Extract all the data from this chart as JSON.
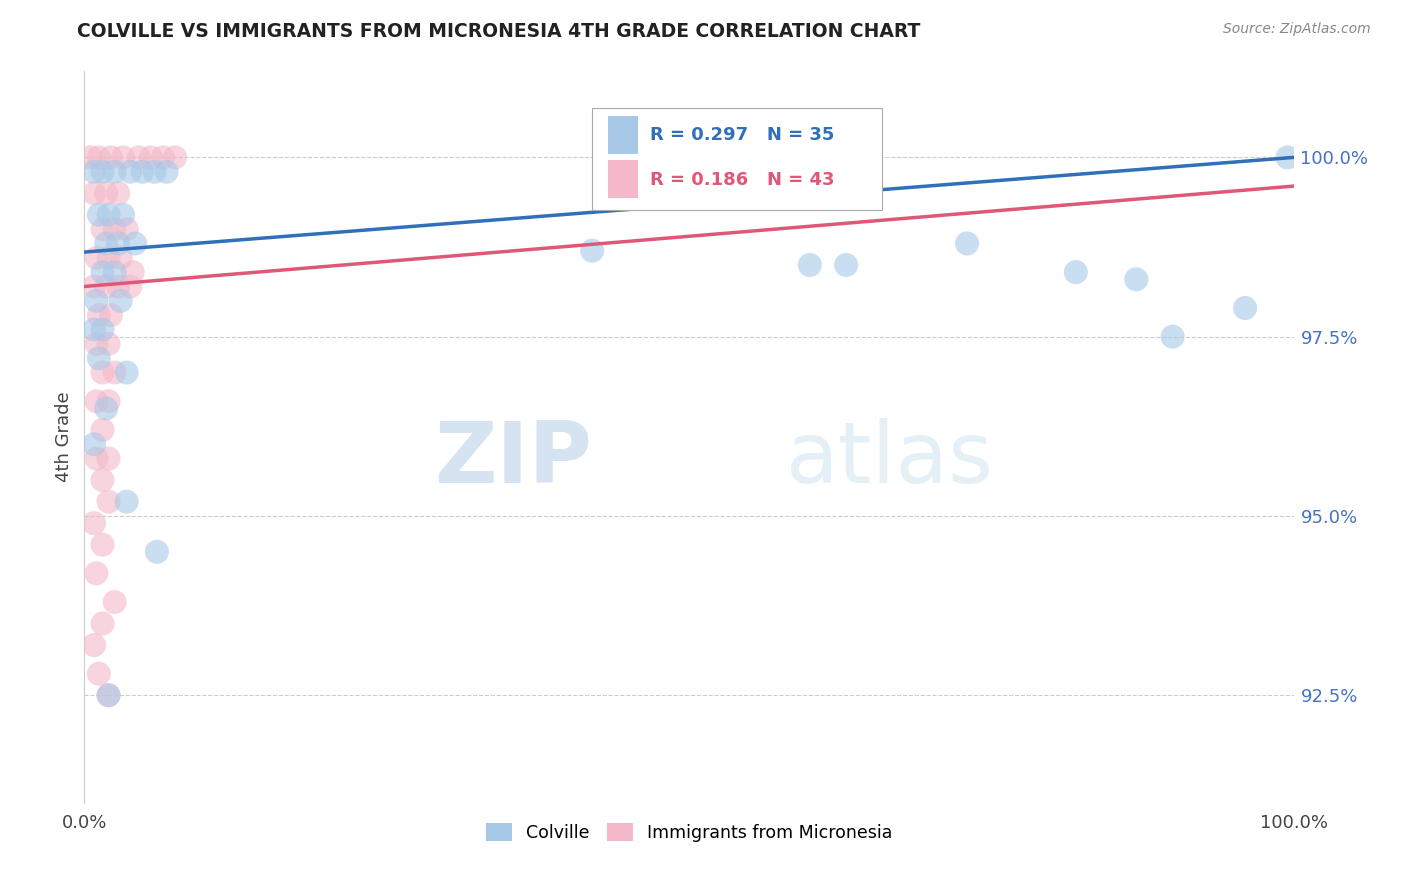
{
  "title": "COLVILLE VS IMMIGRANTS FROM MICRONESIA 4TH GRADE CORRELATION CHART",
  "source_text": "Source: ZipAtlas.com",
  "ylabel": "4th Grade",
  "x_min": 0.0,
  "x_max": 100.0,
  "y_min": 91.0,
  "y_max": 101.2,
  "y_ticks": [
    92.5,
    95.0,
    97.5,
    100.0
  ],
  "x_tick_positions": [
    0.0,
    100.0
  ],
  "x_tick_labels": [
    "0.0%",
    "100.0%"
  ],
  "blue_color": "#a8c8e8",
  "pink_color": "#f4b8c8",
  "blue_line_color": "#3070b8",
  "pink_line_color": "#e05878",
  "R_blue": 0.297,
  "N_blue": 35,
  "R_pink": 0.186,
  "N_pink": 43,
  "colville_label": "Colville",
  "micronesia_label": "Immigrants from Micronesia",
  "watermark_zip": "ZIP",
  "watermark_atlas": "atlas",
  "right_tick_color": "#4472c4",
  "background_color": "#ffffff",
  "blue_points": [
    [
      0.8,
      99.8
    ],
    [
      1.5,
      99.8
    ],
    [
      2.5,
      99.8
    ],
    [
      3.8,
      99.8
    ],
    [
      4.8,
      99.8
    ],
    [
      5.8,
      99.8
    ],
    [
      6.8,
      99.8
    ],
    [
      1.2,
      99.2
    ],
    [
      2.0,
      99.2
    ],
    [
      3.2,
      99.2
    ],
    [
      1.8,
      98.8
    ],
    [
      2.8,
      98.8
    ],
    [
      4.2,
      98.8
    ],
    [
      1.5,
      98.4
    ],
    [
      2.5,
      98.4
    ],
    [
      1.0,
      98.0
    ],
    [
      3.0,
      98.0
    ],
    [
      1.5,
      97.6
    ],
    [
      0.8,
      97.6
    ],
    [
      1.2,
      97.2
    ],
    [
      3.5,
      97.0
    ],
    [
      1.8,
      96.5
    ],
    [
      0.8,
      96.0
    ],
    [
      3.5,
      95.2
    ],
    [
      6.0,
      94.5
    ],
    [
      42.0,
      98.7
    ],
    [
      60.0,
      98.5
    ],
    [
      63.0,
      98.5
    ],
    [
      73.0,
      98.8
    ],
    [
      82.0,
      98.4
    ],
    [
      87.0,
      98.3
    ],
    [
      90.0,
      97.5
    ],
    [
      96.0,
      97.9
    ],
    [
      99.5,
      100.0
    ],
    [
      2.0,
      92.5
    ]
  ],
  "pink_points": [
    [
      0.5,
      100.0
    ],
    [
      1.2,
      100.0
    ],
    [
      2.2,
      100.0
    ],
    [
      3.2,
      100.0
    ],
    [
      4.5,
      100.0
    ],
    [
      5.5,
      100.0
    ],
    [
      6.5,
      100.0
    ],
    [
      7.5,
      100.0
    ],
    [
      0.8,
      99.5
    ],
    [
      1.8,
      99.5
    ],
    [
      2.8,
      99.5
    ],
    [
      1.5,
      99.0
    ],
    [
      2.5,
      99.0
    ],
    [
      3.5,
      99.0
    ],
    [
      1.0,
      98.6
    ],
    [
      2.0,
      98.6
    ],
    [
      3.0,
      98.6
    ],
    [
      0.8,
      98.2
    ],
    [
      1.8,
      98.2
    ],
    [
      2.8,
      98.2
    ],
    [
      3.8,
      98.2
    ],
    [
      1.2,
      97.8
    ],
    [
      2.2,
      97.8
    ],
    [
      1.0,
      97.4
    ],
    [
      2.0,
      97.4
    ],
    [
      1.5,
      97.0
    ],
    [
      2.5,
      97.0
    ],
    [
      1.0,
      96.6
    ],
    [
      2.0,
      96.6
    ],
    [
      1.5,
      96.2
    ],
    [
      1.0,
      95.8
    ],
    [
      2.0,
      95.8
    ],
    [
      1.5,
      95.5
    ],
    [
      2.0,
      95.2
    ],
    [
      0.8,
      94.9
    ],
    [
      1.5,
      94.6
    ],
    [
      1.0,
      94.2
    ],
    [
      2.5,
      93.8
    ],
    [
      1.5,
      93.5
    ],
    [
      0.8,
      93.2
    ],
    [
      1.2,
      92.8
    ],
    [
      2.0,
      92.5
    ],
    [
      4.0,
      98.4
    ]
  ]
}
